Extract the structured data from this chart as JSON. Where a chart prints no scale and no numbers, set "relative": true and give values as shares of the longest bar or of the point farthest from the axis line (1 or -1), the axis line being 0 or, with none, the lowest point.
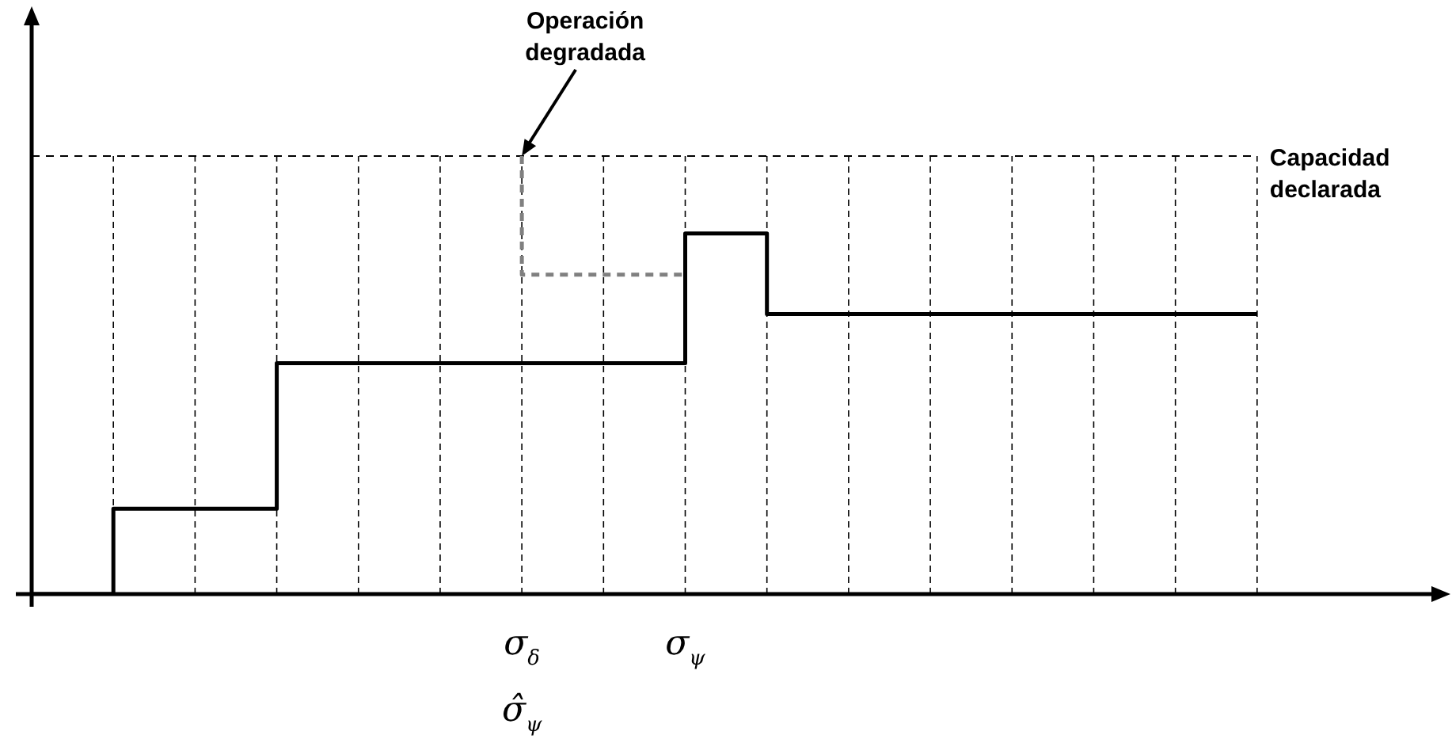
{
  "chart_data": {
    "type": "step",
    "relative": true,
    "categories": [
      null,
      null,
      null,
      null,
      null,
      null,
      "σ$_{δ}$\nσ̂$_{ψ}$",
      null,
      "σ$_{ψ}$",
      null,
      null,
      null,
      null,
      null,
      null,
      null
    ],
    "series": [
      {
        "color": "#000000",
        "values": [
          0,
          0,
          0.195,
          0.195,
          0.527,
          0.527,
          0.527,
          0.527,
          0.527,
          0.823,
          0.639,
          0.639,
          0.639,
          0.639,
          0.639,
          0.639
        ]
      },
      {
        "color": "#808080",
        "line_style": "dashed",
        "values": [
          null,
          null,
          null,
          null,
          null,
          null,
          1,
          0.729,
          0.729,
          null,
          null,
          null,
          null,
          null,
          null,
          null
        ]
      }
    ],
    "grid": "x",
    "ref_lines": [
      {
        "axis": "y",
        "value": 1,
        "label": "Capacidad\ndeclarada",
        "line_style": "dashed",
        "color": "#000000"
      }
    ],
    "annotations": [
      {
        "text": "Operación\ndegradada",
        "x": "σ$_{δ}$\nσ̂$_{ψ}$",
        "y": 1
      }
    ],
    "legend": false
  }
}
